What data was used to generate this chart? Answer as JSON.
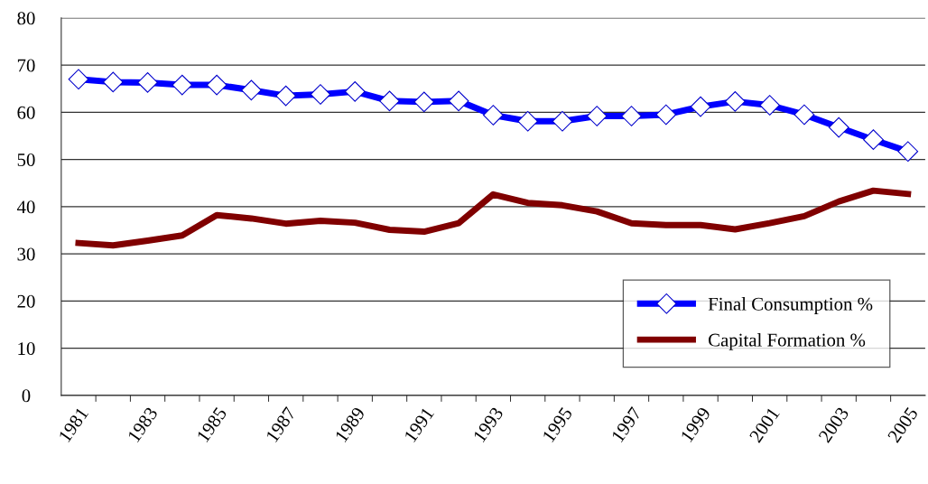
{
  "chart_data": {
    "type": "line",
    "categories": [
      "1981",
      null,
      "1983",
      null,
      "1985",
      null,
      "1987",
      null,
      "1989",
      null,
      "1991",
      null,
      "1993",
      null,
      "1995",
      null,
      "1997",
      null,
      "1999",
      null,
      "2001",
      null,
      "2003",
      null,
      "2005"
    ],
    "series": [
      {
        "name": "Final Consumption %",
        "color": "#0000ff",
        "marker": "diamond",
        "values": [
          67.0,
          66.4,
          66.3,
          65.8,
          65.8,
          64.7,
          63.5,
          63.8,
          64.4,
          62.4,
          62.2,
          62.4,
          59.4,
          58.1,
          58.1,
          59.2,
          59.2,
          59.5,
          61.2,
          62.3,
          61.5,
          59.5,
          56.8,
          54.2,
          51.7
        ]
      },
      {
        "name": "Capital Formation %",
        "color": "#800000",
        "marker": "none",
        "values": [
          32.3,
          31.8,
          32.8,
          33.9,
          38.2,
          37.5,
          36.4,
          37.0,
          36.6,
          35.1,
          34.7,
          36.5,
          42.6,
          40.8,
          40.3,
          39.0,
          36.5,
          36.1,
          36.1,
          35.2,
          36.5,
          38.0,
          41.1,
          43.4,
          42.7
        ]
      }
    ],
    "ylim": [
      0,
      80
    ],
    "yticks": [
      0,
      10,
      20,
      30,
      40,
      50,
      60,
      70,
      80
    ],
    "grid": "y",
    "legend": "bottom right",
    "line_style": "solid"
  }
}
